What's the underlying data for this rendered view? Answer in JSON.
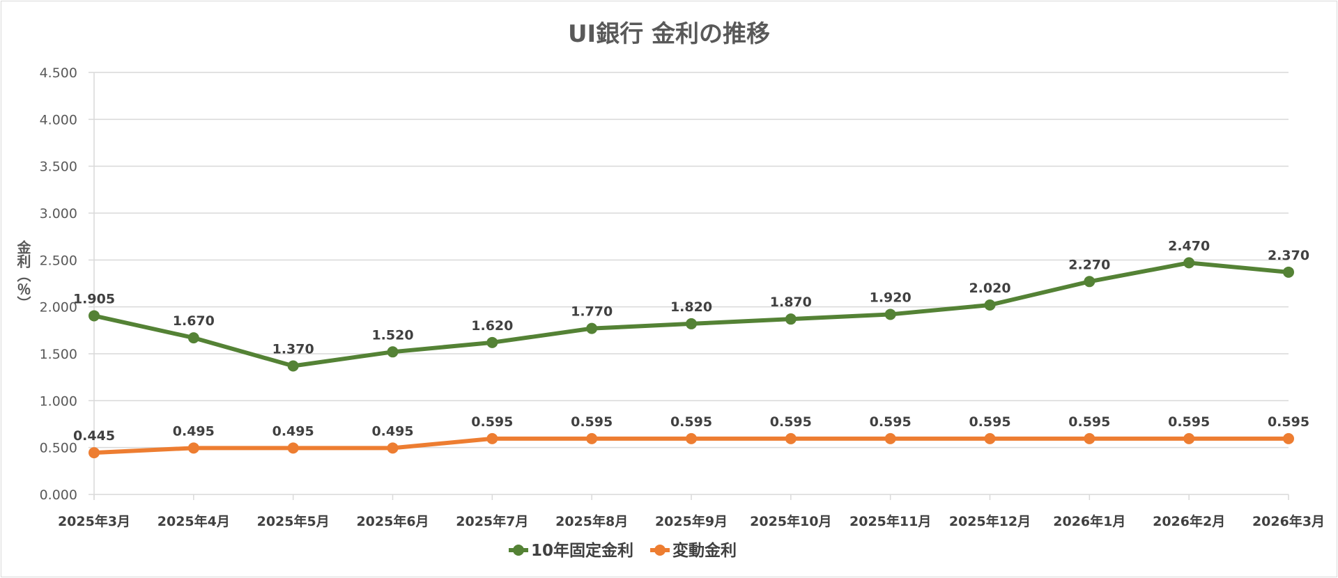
{
  "chart_data": {
    "type": "line",
    "title": "UI銀行 金利の推移",
    "ylabel": "金利（％）",
    "xlabel": "",
    "categories": [
      "2025年3月",
      "2025年4月",
      "2025年5月",
      "2025年6月",
      "2025年7月",
      "2025年8月",
      "2025年9月",
      "2025年10月",
      "2025年11月",
      "2025年12月",
      "2026年1月",
      "2026年2月",
      "2026年3月"
    ],
    "ylim": [
      0,
      4.5
    ],
    "yticks": [
      "0.000",
      "0.500",
      "1.000",
      "1.500",
      "2.000",
      "2.500",
      "3.000",
      "3.500",
      "4.000",
      "4.500"
    ],
    "grid": true,
    "legend_position": "bottom",
    "series": [
      {
        "name": "10年固定金利",
        "color": "#548235",
        "values": [
          1.905,
          1.67,
          1.37,
          1.52,
          1.62,
          1.77,
          1.82,
          1.87,
          1.92,
          2.02,
          2.27,
          2.47,
          2.37
        ],
        "labels": [
          "1.905",
          "1.670",
          "1.370",
          "1.520",
          "1.620",
          "1.770",
          "1.820",
          "1.870",
          "1.920",
          "2.020",
          "2.270",
          "2.470",
          "2.370"
        ]
      },
      {
        "name": "変動金利",
        "color": "#ED7D31",
        "values": [
          0.445,
          0.495,
          0.495,
          0.495,
          0.595,
          0.595,
          0.595,
          0.595,
          0.595,
          0.595,
          0.595,
          0.595,
          0.595
        ],
        "labels": [
          "0.445",
          "0.495",
          "0.495",
          "0.495",
          "0.595",
          "0.595",
          "0.595",
          "0.595",
          "0.595",
          "0.595",
          "0.595",
          "0.595",
          "0.595"
        ]
      }
    ]
  }
}
